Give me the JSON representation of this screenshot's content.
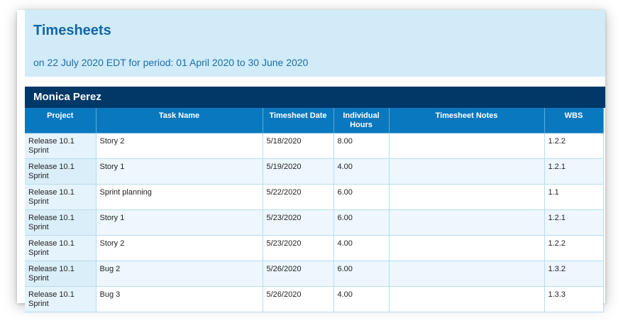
{
  "report": {
    "title": "Timesheets",
    "subtitle": "on 22 July 2020 EDT for period: 01 April 2020 to 30 June 2020"
  },
  "person": {
    "name": "Monica Perez"
  },
  "table": {
    "columns": [
      "Project",
      "Task Name",
      "Timesheet Date",
      "Individual Hours",
      "Timesheet Notes",
      "WBS"
    ],
    "rows": [
      {
        "project": "Release 10.1 Sprint",
        "task": "Story 2",
        "date": "5/18/2020",
        "hours": "8.00",
        "notes": "",
        "wbs": "1.2.2"
      },
      {
        "project": "Release 10.1 Sprint",
        "task": "Story 1",
        "date": "5/19/2020",
        "hours": "4.00",
        "notes": "",
        "wbs": "1.2.1"
      },
      {
        "project": "Release 10.1 Sprint",
        "task": "Sprint planning",
        "date": "5/22/2020",
        "hours": "6.00",
        "notes": "",
        "wbs": "1.1"
      },
      {
        "project": "Release 10.1 Sprint",
        "task": "Story 1",
        "date": "5/23/2020",
        "hours": "6.00",
        "notes": "",
        "wbs": "1.2.1"
      },
      {
        "project": "Release 10.1 Sprint",
        "task": "Story 2",
        "date": "5/23/2020",
        "hours": "4.00",
        "notes": "",
        "wbs": "1.2.2"
      },
      {
        "project": "Release 10.1 Sprint",
        "task": "Bug 2",
        "date": "5/26/2020",
        "hours": "6.00",
        "notes": "",
        "wbs": "1.3.2"
      },
      {
        "project": "Release 10.1 Sprint",
        "task": "Bug 3",
        "date": "5/26/2020",
        "hours": "4.00",
        "notes": "",
        "wbs": "1.3.3"
      }
    ]
  },
  "colors": {
    "header_bg": "#d1ebf9",
    "title": "#1466a6",
    "person_bar": "#003868",
    "column_header": "#0a78be"
  }
}
